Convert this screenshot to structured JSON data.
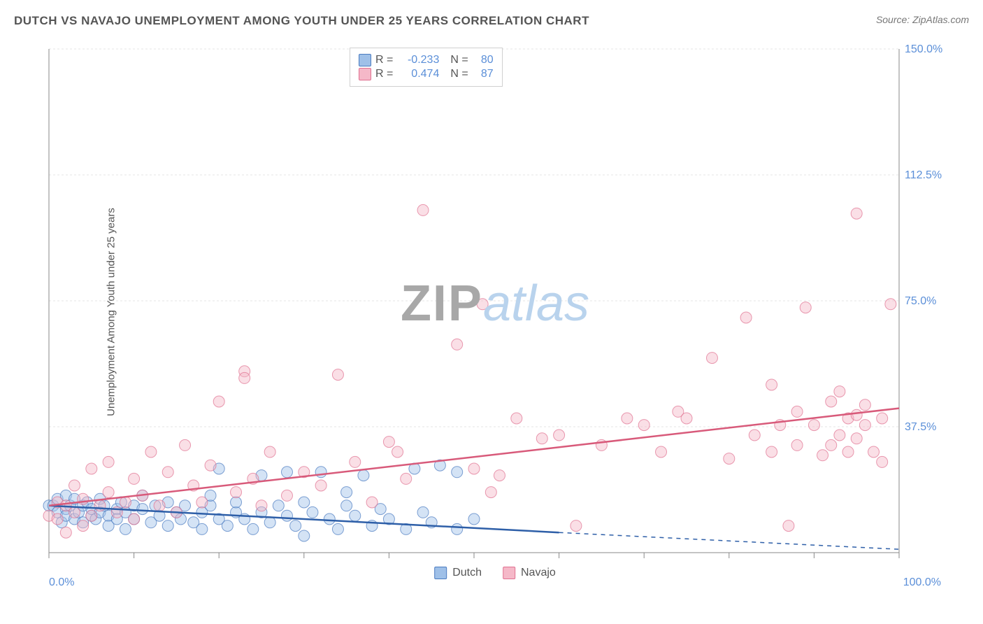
{
  "title": "DUTCH VS NAVAJO UNEMPLOYMENT AMONG YOUTH UNDER 25 YEARS CORRELATION CHART",
  "source": "Source: ZipAtlas.com",
  "ylabel": "Unemployment Among Youth under 25 years",
  "watermark": {
    "part1": "ZIP",
    "part2": "atlas"
  },
  "chart": {
    "type": "scatter",
    "xlim": [
      0,
      100
    ],
    "ylim": [
      0,
      150
    ],
    "background_color": "#ffffff",
    "grid_color": "#e5e5e5",
    "axis_line_color": "#888888",
    "axis_label_color": "#5b8fd8",
    "x_ticks": [
      0,
      10,
      20,
      30,
      40,
      50,
      60,
      70,
      80,
      90,
      100
    ],
    "x_tick_labels": {
      "0": "0.0%",
      "100": "100.0%"
    },
    "y_ticks": [
      0,
      37.5,
      75,
      112.5,
      150
    ],
    "y_tick_labels": {
      "37.5": "37.5%",
      "75": "75.0%",
      "112.5": "112.5%",
      "150": "150.0%"
    },
    "marker_radius": 8,
    "marker_opacity": 0.45,
    "series": [
      {
        "name": "Dutch",
        "label": "Dutch",
        "fill_color": "#9fc0e8",
        "stroke_color": "#4a7bc0",
        "line_color": "#2e5fa8",
        "R": "-0.233",
        "N": "80",
        "trend": {
          "x1": 0,
          "y1": 14,
          "x2": 60,
          "y2": 6,
          "x2_dash": 100,
          "y2_dash": 1
        },
        "points": [
          [
            0,
            14
          ],
          [
            0.5,
            14
          ],
          [
            1,
            12
          ],
          [
            1,
            16
          ],
          [
            1.5,
            9
          ],
          [
            2,
            13
          ],
          [
            2,
            17
          ],
          [
            2,
            11
          ],
          [
            2.5,
            14
          ],
          [
            3,
            10
          ],
          [
            3,
            16
          ],
          [
            3.5,
            12
          ],
          [
            4,
            14
          ],
          [
            4,
            9
          ],
          [
            4.5,
            15
          ],
          [
            5,
            11
          ],
          [
            5,
            13
          ],
          [
            5.5,
            10
          ],
          [
            6,
            12
          ],
          [
            6,
            16
          ],
          [
            6.5,
            14
          ],
          [
            7,
            11
          ],
          [
            7,
            8
          ],
          [
            8,
            13
          ],
          [
            8,
            10
          ],
          [
            8.5,
            15
          ],
          [
            9,
            12
          ],
          [
            9,
            7
          ],
          [
            10,
            14
          ],
          [
            10,
            10
          ],
          [
            11,
            13
          ],
          [
            11,
            17
          ],
          [
            12,
            9
          ],
          [
            12.5,
            14
          ],
          [
            13,
            11
          ],
          [
            14,
            8
          ],
          [
            14,
            15
          ],
          [
            15,
            12
          ],
          [
            15.5,
            10
          ],
          [
            16,
            14
          ],
          [
            17,
            9
          ],
          [
            18,
            12
          ],
          [
            18,
            7
          ],
          [
            19,
            14
          ],
          [
            19,
            17
          ],
          [
            20,
            10
          ],
          [
            20,
            25
          ],
          [
            21,
            8
          ],
          [
            22,
            12
          ],
          [
            22,
            15
          ],
          [
            23,
            10
          ],
          [
            24,
            7
          ],
          [
            25,
            12
          ],
          [
            25,
            23
          ],
          [
            26,
            9
          ],
          [
            27,
            14
          ],
          [
            28,
            11
          ],
          [
            28,
            24
          ],
          [
            29,
            8
          ],
          [
            30,
            15
          ],
          [
            30,
            5
          ],
          [
            31,
            12
          ],
          [
            32,
            24
          ],
          [
            33,
            10
          ],
          [
            34,
            7
          ],
          [
            35,
            14
          ],
          [
            35,
            18
          ],
          [
            36,
            11
          ],
          [
            37,
            23
          ],
          [
            38,
            8
          ],
          [
            39,
            13
          ],
          [
            40,
            10
          ],
          [
            42,
            7
          ],
          [
            43,
            25
          ],
          [
            44,
            12
          ],
          [
            45,
            9
          ],
          [
            46,
            26
          ],
          [
            48,
            7
          ],
          [
            48,
            24
          ],
          [
            50,
            10
          ]
        ]
      },
      {
        "name": "Navajo",
        "label": "Navajo",
        "fill_color": "#f5b8c8",
        "stroke_color": "#e07090",
        "line_color": "#d85a7a",
        "R": "0.474",
        "N": "87",
        "trend": {
          "x1": 0,
          "y1": 14,
          "x2": 100,
          "y2": 43,
          "x2_dash": 100,
          "y2_dash": 43
        },
        "points": [
          [
            0,
            11
          ],
          [
            1,
            15
          ],
          [
            1,
            10
          ],
          [
            2,
            14
          ],
          [
            2,
            6
          ],
          [
            3,
            12
          ],
          [
            3,
            20
          ],
          [
            4,
            16
          ],
          [
            4,
            8
          ],
          [
            5,
            11
          ],
          [
            5,
            25
          ],
          [
            6,
            14
          ],
          [
            7,
            18
          ],
          [
            7,
            27
          ],
          [
            8,
            12
          ],
          [
            9,
            15
          ],
          [
            10,
            22
          ],
          [
            10,
            10
          ],
          [
            11,
            17
          ],
          [
            12,
            30
          ],
          [
            13,
            14
          ],
          [
            14,
            24
          ],
          [
            15,
            12
          ],
          [
            16,
            32
          ],
          [
            17,
            20
          ],
          [
            18,
            15
          ],
          [
            19,
            26
          ],
          [
            20,
            45
          ],
          [
            22,
            18
          ],
          [
            23,
            54
          ],
          [
            23,
            52
          ],
          [
            24,
            22
          ],
          [
            25,
            14
          ],
          [
            26,
            30
          ],
          [
            28,
            17
          ],
          [
            30,
            24
          ],
          [
            32,
            20
          ],
          [
            34,
            53
          ],
          [
            36,
            27
          ],
          [
            38,
            15
          ],
          [
            40,
            33
          ],
          [
            41,
            30
          ],
          [
            42,
            22
          ],
          [
            44,
            102
          ],
          [
            48,
            62
          ],
          [
            50,
            25
          ],
          [
            51,
            74
          ],
          [
            52,
            18
          ],
          [
            53,
            23
          ],
          [
            55,
            40
          ],
          [
            58,
            34
          ],
          [
            60,
            35
          ],
          [
            62,
            8
          ],
          [
            65,
            32
          ],
          [
            68,
            40
          ],
          [
            70,
            38
          ],
          [
            72,
            30
          ],
          [
            74,
            42
          ],
          [
            75,
            40
          ],
          [
            78,
            58
          ],
          [
            80,
            28
          ],
          [
            82,
            70
          ],
          [
            83,
            35
          ],
          [
            85,
            50
          ],
          [
            85,
            30
          ],
          [
            86,
            38
          ],
          [
            87,
            8
          ],
          [
            88,
            42
          ],
          [
            88,
            32
          ],
          [
            89,
            73
          ],
          [
            90,
            38
          ],
          [
            91,
            29
          ],
          [
            92,
            45
          ],
          [
            92,
            32
          ],
          [
            93,
            48
          ],
          [
            93,
            35
          ],
          [
            94,
            30
          ],
          [
            94,
            40
          ],
          [
            95,
            41
          ],
          [
            95,
            34
          ],
          [
            95,
            101
          ],
          [
            96,
            38
          ],
          [
            96,
            44
          ],
          [
            97,
            30
          ],
          [
            98,
            40
          ],
          [
            98,
            27
          ],
          [
            99,
            74
          ]
        ]
      }
    ],
    "legend_bottom": [
      {
        "label": "Dutch",
        "fill": "#9fc0e8",
        "stroke": "#4a7bc0"
      },
      {
        "label": "Navajo",
        "fill": "#f5b8c8",
        "stroke": "#e07090"
      }
    ]
  }
}
